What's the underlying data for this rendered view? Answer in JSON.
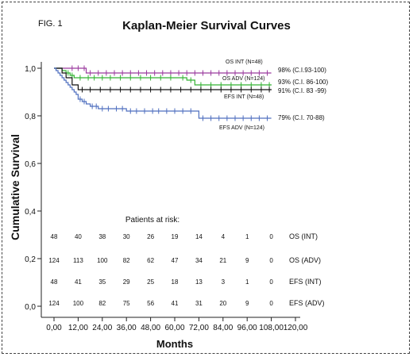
{
  "figure_label": "FIG. 1",
  "chart_data": {
    "type": "line",
    "title": "Kaplan-Meier Survival Curves",
    "xlabel": "Months",
    "ylabel": "Cumulative Survival",
    "xlim": [
      0,
      120
    ],
    "ylim": [
      0,
      1
    ],
    "x_ticks": [
      "0,00",
      "12,00",
      "24,00",
      "36,00",
      "48,00",
      "60,00",
      "72,00",
      "84,00",
      "96,00",
      "108,00",
      "120,00"
    ],
    "y_ticks": [
      "0,0",
      "0,2",
      "0,4",
      "0,6",
      "0,8",
      "1,0"
    ],
    "grid": false,
    "legend": "none",
    "series": [
      {
        "name": "OS INT (N=48)",
        "color": "#9a3a9e",
        "annotation": "98% (C.I.93-100)",
        "x": [
          0,
          8,
          16,
          108
        ],
        "y": [
          1.0,
          1.0,
          0.98,
          0.98
        ],
        "censored_x": [
          9,
          12,
          15,
          18,
          22,
          26,
          30,
          34,
          38,
          42,
          46,
          50,
          54,
          58,
          62,
          66,
          70,
          74,
          78,
          82,
          86,
          90,
          94,
          98,
          102,
          106
        ]
      },
      {
        "name": "OS ADV (N=124)",
        "color": "#33b233",
        "annotation": "93% (C.I. 86-100)",
        "x": [
          0,
          4,
          6,
          8,
          10,
          12,
          62,
          66,
          70,
          108
        ],
        "y": [
          1.0,
          0.99,
          0.98,
          0.97,
          0.96,
          0.96,
          0.96,
          0.95,
          0.93,
          0.93
        ],
        "censored_x": [
          7,
          9,
          13,
          17,
          20,
          24,
          28,
          33,
          38,
          43,
          48,
          53,
          58,
          64,
          68,
          73,
          78,
          83,
          88,
          93,
          98,
          103,
          107
        ]
      },
      {
        "name": "EFS INT (N=48)",
        "color": "#111111",
        "annotation": "91% (C.I. 83 -99)",
        "x": [
          0,
          4,
          6,
          9,
          12,
          108
        ],
        "y": [
          1.0,
          0.98,
          0.96,
          0.93,
          0.91,
          0.91
        ],
        "censored_x": [
          14,
          18,
          23,
          28,
          33,
          38,
          43,
          48,
          53,
          58,
          63,
          68,
          73,
          78,
          83,
          88,
          93,
          98,
          103,
          107
        ]
      },
      {
        "name": "EFS ADV (N=124)",
        "color": "#4f6fbf",
        "annotation": "79% (C.I. 70-88)",
        "x": [
          0,
          1,
          2,
          3,
          4,
          5,
          6,
          7,
          8,
          9,
          10,
          11,
          12,
          14,
          16,
          18,
          20,
          22,
          26,
          30,
          36,
          44,
          72,
          108
        ],
        "y": [
          1.0,
          0.99,
          0.98,
          0.97,
          0.96,
          0.95,
          0.94,
          0.93,
          0.92,
          0.91,
          0.9,
          0.89,
          0.87,
          0.86,
          0.85,
          0.84,
          0.84,
          0.83,
          0.83,
          0.83,
          0.82,
          0.82,
          0.79,
          0.79
        ],
        "censored_x": [
          13,
          15,
          19,
          21,
          24,
          27,
          31,
          34,
          38,
          41,
          45,
          49,
          52,
          56,
          60,
          64,
          68,
          74,
          78,
          82,
          86,
          90,
          94,
          98,
          102,
          106
        ]
      }
    ],
    "patients_at_risk": {
      "title": "Patients at risk:",
      "rows": [
        {
          "label": "OS  (INT)",
          "values": [
            "48",
            "40",
            "38",
            "30",
            "26",
            "19",
            "14",
            "4",
            "1",
            "0"
          ]
        },
        {
          "label": "OS (ADV)",
          "values": [
            "124",
            "113",
            "100",
            "82",
            "62",
            "47",
            "34",
            "21",
            "9",
            "0"
          ]
        },
        {
          "label": "EFS  (INT)",
          "values": [
            "48",
            "41",
            "35",
            "29",
            "25",
            "18",
            "13",
            "3",
            "1",
            "0"
          ]
        },
        {
          "label": "EFS (ADV)",
          "values": [
            "124",
            "100",
            "82",
            "75",
            "56",
            "41",
            "31",
            "20",
            "9",
            "0"
          ]
        }
      ]
    }
  }
}
